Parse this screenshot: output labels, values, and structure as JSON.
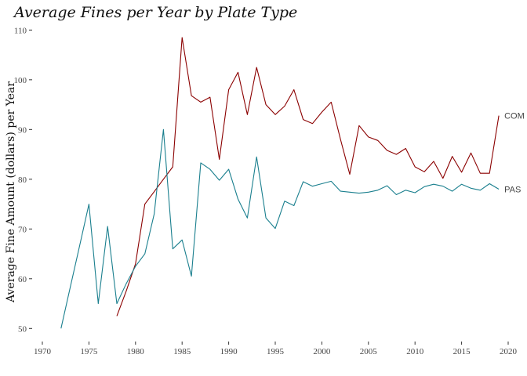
{
  "chart_data": {
    "type": "line",
    "title": "Average Fines per Year by Plate Type",
    "xlabel": "",
    "ylabel": "Average Fine Amount (dollars) per Year",
    "xlim": [
      1970,
      2020
    ],
    "ylim": [
      48,
      111
    ],
    "xticks": [
      1970,
      1975,
      1980,
      1985,
      1990,
      1995,
      2000,
      2005,
      2010,
      2015,
      2020
    ],
    "yticks": [
      50,
      60,
      70,
      80,
      90,
      100,
      110
    ],
    "grid": false,
    "legend": "none",
    "series": [
      {
        "name": "COM",
        "color": "#8b0000",
        "x": [
          1978,
          1979,
          1980,
          1981,
          1982,
          1983,
          1984,
          1985,
          1986,
          1987,
          1988,
          1989,
          1990,
          1991,
          1992,
          1993,
          1994,
          1995,
          1996,
          1997,
          1998,
          1999,
          2000,
          2001,
          2002,
          2003,
          2004,
          2005,
          2006,
          2007,
          2008,
          2009,
          2010,
          2011,
          2012,
          2013,
          2014,
          2015,
          2016,
          2017,
          2018,
          2019
        ],
        "values": [
          52.5,
          57.5,
          63,
          75,
          77.5,
          80,
          82.5,
          108.5,
          96.8,
          95.5,
          96.5,
          84,
          98,
          101.5,
          93,
          102.5,
          95,
          93,
          94.7,
          98,
          92,
          91.2,
          93.5,
          95.5,
          88,
          81,
          90.8,
          88.5,
          87.8,
          85.8,
          85,
          86.2,
          82.5,
          81.5,
          83.6,
          80.2,
          84.6,
          81.4,
          85.3,
          81.2,
          81.2,
          92.8
        ]
      },
      {
        "name": "PAS",
        "color": "#1a7f8e",
        "x": [
          1972,
          1973,
          1974,
          1975,
          1976,
          1977,
          1978,
          1979,
          1980,
          1981,
          1982,
          1983,
          1984,
          1985,
          1986,
          1987,
          1988,
          1989,
          1990,
          1991,
          1992,
          1993,
          1994,
          1995,
          1996,
          1997,
          1998,
          1999,
          2000,
          2001,
          2002,
          2003,
          2004,
          2005,
          2006,
          2007,
          2008,
          2009,
          2010,
          2011,
          2012,
          2013,
          2014,
          2015,
          2016,
          2017,
          2018,
          2019
        ],
        "values": [
          50,
          58.3,
          66.6,
          75,
          55,
          70.5,
          55,
          59,
          62.5,
          65,
          73,
          90,
          66,
          67.8,
          60.5,
          83.3,
          82,
          79.8,
          82,
          76,
          72.2,
          84.5,
          72.2,
          70.1,
          75.6,
          74.7,
          79.5,
          78.6,
          79.1,
          79.6,
          77.6,
          77.4,
          77.2,
          77.4,
          77.8,
          78.7,
          76.9,
          77.8,
          77.3,
          78.5,
          79,
          78.6,
          77.6,
          79,
          78.2,
          77.8,
          79.1,
          78
        ]
      }
    ]
  }
}
